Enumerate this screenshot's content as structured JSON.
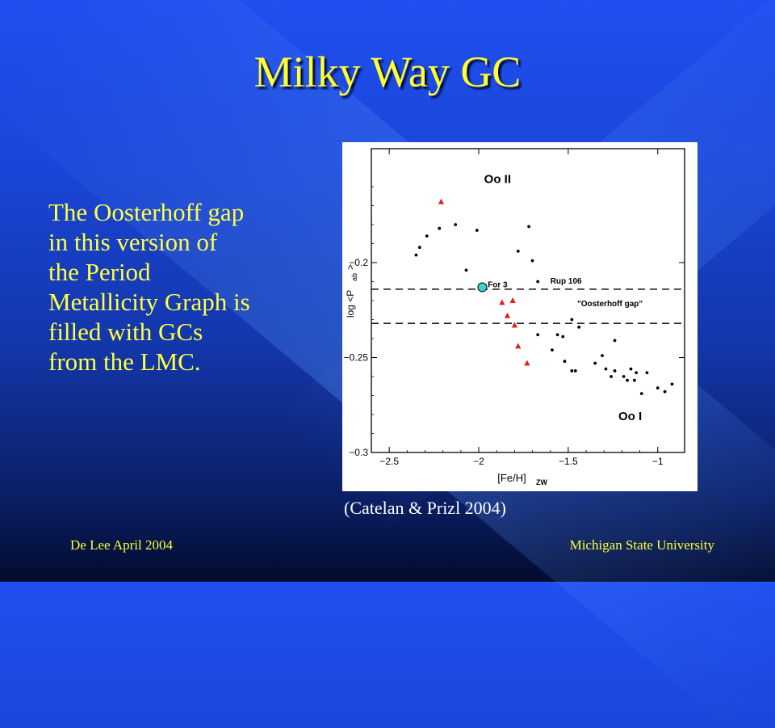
{
  "slide": {
    "title": "Milky Way GC",
    "body": "The Oosterhoff gap\nin this version of\nthe Period\nMetallicity Graph is\nfilled with GCs\nfrom the LMC.",
    "caption": "(Catelan & Prizl 2004)",
    "footer_left": "De Lee April 2004",
    "footer_right": "Michigan State University"
  },
  "colors": {
    "title": "#ffff33",
    "body": "#ffff44",
    "triangle": "#e02020",
    "for3": "#40d0d0"
  },
  "chart_data": {
    "type": "scatter",
    "xlabel": "[Fe/H]",
    "xlabel_sub": "ZW",
    "ylabel": "log <P",
    "ylabel_sub": "ab",
    "ylabel_end": ">",
    "xlim": [
      -2.6,
      -0.85
    ],
    "ylim": [
      -0.3,
      -0.14
    ],
    "xticks": [
      -2.5,
      -2,
      -1.5,
      -1
    ],
    "xtick_labels": [
      "−2.5",
      "−2",
      "−1.5",
      "−1"
    ],
    "yticks": [
      -0.3,
      -0.25,
      -0.2
    ],
    "ytick_labels": [
      "−0.3",
      "−0.25",
      "−0.2"
    ],
    "gap_lines": [
      -0.214,
      -0.232
    ],
    "annotations": [
      {
        "text": "Oo II",
        "x": -1.97,
        "y": -0.158
      },
      {
        "text": "Oo I",
        "x": -1.22,
        "y": -0.283
      },
      {
        "text": "\"Oosterhoff gap\"",
        "x": -1.45,
        "y": -0.223
      },
      {
        "text": "For 3",
        "x": -1.95,
        "y": -0.213
      },
      {
        "text": "Rup 106",
        "x": -1.6,
        "y": -0.211
      }
    ],
    "series": [
      {
        "name": "Milky Way GCs",
        "marker": "dot",
        "points": [
          [
            -2.35,
            -0.196
          ],
          [
            -2.33,
            -0.192
          ],
          [
            -2.29,
            -0.186
          ],
          [
            -2.22,
            -0.182
          ],
          [
            -2.13,
            -0.18
          ],
          [
            -2.01,
            -0.183
          ],
          [
            -2.07,
            -0.204
          ],
          [
            -1.78,
            -0.194
          ],
          [
            -1.72,
            -0.181
          ],
          [
            -1.7,
            -0.199
          ],
          [
            -1.67,
            -0.21
          ],
          [
            -1.48,
            -0.23
          ],
          [
            -1.44,
            -0.234
          ],
          [
            -1.67,
            -0.238
          ],
          [
            -1.56,
            -0.238
          ],
          [
            -1.53,
            -0.239
          ],
          [
            -1.59,
            -0.246
          ],
          [
            -1.52,
            -0.252
          ],
          [
            -1.48,
            -0.257
          ],
          [
            -1.46,
            -0.257
          ],
          [
            -1.35,
            -0.253
          ],
          [
            -1.31,
            -0.249
          ],
          [
            -1.26,
            -0.26
          ],
          [
            -1.29,
            -0.256
          ],
          [
            -1.24,
            -0.257
          ],
          [
            -1.19,
            -0.26
          ],
          [
            -1.15,
            -0.256
          ],
          [
            -1.17,
            -0.262
          ],
          [
            -1.13,
            -0.262
          ],
          [
            -1.12,
            -0.258
          ],
          [
            -1.06,
            -0.258
          ],
          [
            -1.24,
            -0.241
          ],
          [
            -1.0,
            -0.266
          ],
          [
            -0.96,
            -0.268
          ],
          [
            -0.92,
            -0.264
          ],
          [
            -1.09,
            -0.269
          ]
        ]
      },
      {
        "name": "LMC GCs",
        "marker": "triangle",
        "points": [
          [
            -2.21,
            -0.168
          ],
          [
            -1.87,
            -0.221
          ],
          [
            -1.84,
            -0.228
          ],
          [
            -1.81,
            -0.22
          ],
          [
            -1.8,
            -0.233
          ],
          [
            -1.78,
            -0.244
          ],
          [
            -1.73,
            -0.253
          ]
        ]
      },
      {
        "name": "For 3",
        "marker": "circle",
        "points": [
          [
            -1.98,
            -0.213
          ]
        ]
      }
    ]
  }
}
